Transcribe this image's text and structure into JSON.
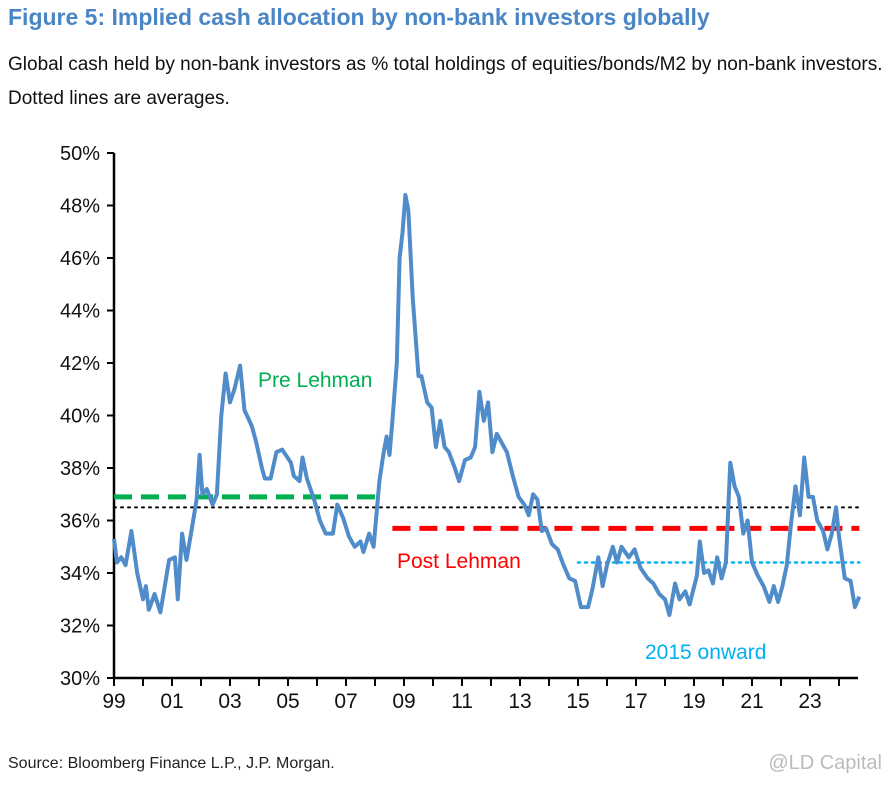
{
  "title": "Figure 5: Implied cash allocation by non-bank investors globally",
  "subtitle": "Global cash held by non-bank investors as % total holdings of equities/bonds/M2 by non-bank investors. Dotted lines are averages.",
  "source": "Source: Bloomberg Finance L.P., J.P. Morgan.",
  "watermark": "@LD Capital",
  "colors": {
    "title": "#4A86C5",
    "series": "#4F8CC9",
    "pre": "#00B050",
    "post": "#FF0000",
    "since2015": "#00B0F0",
    "overall": "#000000"
  },
  "chart_data": {
    "type": "line",
    "title": "Figure 5: Implied cash allocation by non-bank investors globally",
    "xlabel": "",
    "ylabel": "",
    "ylim": [
      30,
      50
    ],
    "xlim": [
      1999,
      2024.9
    ],
    "yticks": [
      "30%",
      "32%",
      "34%",
      "36%",
      "38%",
      "40%",
      "42%",
      "44%",
      "46%",
      "48%",
      "50%"
    ],
    "xticks": [
      {
        "year": 1999,
        "label": "99"
      },
      {
        "year": 2001,
        "label": "01"
      },
      {
        "year": 2003,
        "label": "03"
      },
      {
        "year": 2005,
        "label": "05"
      },
      {
        "year": 2007,
        "label": "07"
      },
      {
        "year": 2009,
        "label": "09"
      },
      {
        "year": 2011,
        "label": "11"
      },
      {
        "year": 2013,
        "label": "13"
      },
      {
        "year": 2015,
        "label": "15"
      },
      {
        "year": 2017,
        "label": "17"
      },
      {
        "year": 2019,
        "label": "19"
      },
      {
        "year": 2021,
        "label": "21"
      },
      {
        "year": 2023,
        "label": "23"
      }
    ],
    "grid": false,
    "series": [
      {
        "name": "Implied cash allocation (%)",
        "x": [
          1999.0,
          1999.1,
          1999.25,
          1999.4,
          1999.6,
          1999.8,
          2000.0,
          2000.1,
          2000.2,
          2000.4,
          2000.6,
          2000.75,
          2000.9,
          2001.1,
          2001.2,
          2001.35,
          2001.5,
          2001.7,
          2001.85,
          2001.95,
          2002.05,
          2002.2,
          2002.4,
          2002.55,
          2002.7,
          2002.85,
          2003.0,
          2003.15,
          2003.35,
          2003.5,
          2003.75,
          2003.9,
          2004.1,
          2004.2,
          2004.4,
          2004.6,
          2004.8,
          2005.1,
          2005.2,
          2005.4,
          2005.5,
          2005.65,
          2005.9,
          2006.1,
          2006.3,
          2006.55,
          2006.7,
          2006.9,
          2007.1,
          2007.3,
          2007.5,
          2007.6,
          2007.8,
          2007.95,
          2008.15,
          2008.3,
          2008.4,
          2008.5,
          2008.6,
          2008.75,
          2008.85,
          2008.95,
          2009.05,
          2009.15,
          2009.3,
          2009.5,
          2009.6,
          2009.8,
          2009.95,
          2010.1,
          2010.25,
          2010.4,
          2010.55,
          2010.75,
          2010.9,
          2011.1,
          2011.3,
          2011.45,
          2011.6,
          2011.75,
          2011.9,
          2012.05,
          2012.2,
          2012.4,
          2012.55,
          2012.75,
          2012.95,
          2013.15,
          2013.3,
          2013.45,
          2013.6,
          2013.75,
          2013.9,
          2014.1,
          2014.3,
          2014.5,
          2014.7,
          2014.9,
          2015.1,
          2015.35,
          2015.5,
          2015.7,
          2015.85,
          2016.0,
          2016.2,
          2016.35,
          2016.5,
          2016.75,
          2016.95,
          2017.15,
          2017.4,
          2017.6,
          2017.8,
          2018.0,
          2018.15,
          2018.35,
          2018.5,
          2018.7,
          2018.85,
          2019.1,
          2019.2,
          2019.35,
          2019.5,
          2019.65,
          2019.8,
          2019.95,
          2020.1,
          2020.25,
          2020.4,
          2020.55,
          2020.7,
          2020.85,
          2021.0,
          2021.2,
          2021.4,
          2021.6,
          2021.75,
          2021.9,
          2022.05,
          2022.2,
          2022.35,
          2022.5,
          2022.65,
          2022.8,
          2022.95,
          2023.1,
          2023.25,
          2023.45,
          2023.6,
          2023.75,
          2023.9,
          2024.0,
          2024.2,
          2024.4,
          2024.55,
          2024.7
        ],
        "values": [
          35.3,
          34.4,
          34.6,
          34.3,
          35.6,
          34.0,
          33.0,
          33.5,
          32.6,
          33.2,
          32.5,
          33.5,
          34.5,
          34.6,
          33.0,
          35.5,
          34.5,
          35.8,
          36.8,
          38.5,
          37.0,
          37.2,
          36.6,
          37.0,
          40.0,
          41.6,
          40.5,
          41.0,
          41.9,
          40.2,
          39.6,
          39.0,
          38.0,
          37.6,
          37.6,
          38.6,
          38.7,
          38.2,
          37.7,
          37.5,
          38.4,
          37.6,
          36.8,
          36.0,
          35.5,
          35.5,
          36.6,
          36.1,
          35.4,
          35.0,
          35.2,
          34.8,
          35.5,
          35.0,
          37.5,
          38.6,
          39.2,
          38.5,
          39.8,
          42.0,
          46.0,
          47.0,
          48.4,
          47.8,
          44.5,
          41.5,
          41.5,
          40.5,
          40.3,
          38.8,
          39.8,
          38.8,
          38.6,
          38.0,
          37.5,
          38.3,
          38.4,
          38.8,
          40.9,
          39.8,
          40.5,
          38.6,
          39.3,
          38.9,
          38.6,
          37.7,
          36.9,
          36.6,
          36.2,
          37.0,
          36.8,
          35.6,
          35.7,
          35.1,
          34.9,
          34.3,
          33.8,
          33.7,
          32.7,
          32.7,
          33.4,
          34.6,
          33.5,
          34.3,
          35.0,
          34.4,
          35.0,
          34.6,
          34.9,
          34.2,
          33.8,
          33.6,
          33.2,
          33.0,
          32.4,
          33.6,
          33.0,
          33.3,
          32.8,
          33.9,
          35.2,
          34.0,
          34.1,
          33.6,
          34.6,
          33.8,
          34.4,
          38.2,
          37.3,
          36.9,
          35.5,
          36.0,
          34.4,
          33.9,
          33.5,
          32.9,
          33.5,
          32.9,
          33.5,
          34.3,
          35.9,
          37.3,
          36.2,
          38.4,
          36.9,
          36.9,
          36.0,
          35.6,
          34.9,
          35.5,
          36.5,
          35.4,
          33.8,
          33.7,
          32.7,
          33.1
        ]
      }
    ],
    "averages": [
      {
        "name": "Pre Lehman",
        "label": "Pre Lehman",
        "value": 36.9,
        "from": 1999.0,
        "to": 2008.3,
        "style": "dashed"
      },
      {
        "name": "Overall",
        "label": "",
        "value": 36.5,
        "from": 1999.0,
        "to": 2024.7,
        "style": "dotted"
      },
      {
        "name": "Post Lehman",
        "label": "Post Lehman",
        "value": 35.7,
        "from": 2008.6,
        "to": 2024.7,
        "style": "dashed"
      },
      {
        "name": "2015 onward",
        "label": "2015 onward",
        "value": 34.4,
        "from": 2015.0,
        "to": 2024.7,
        "style": "dotted"
      }
    ]
  }
}
